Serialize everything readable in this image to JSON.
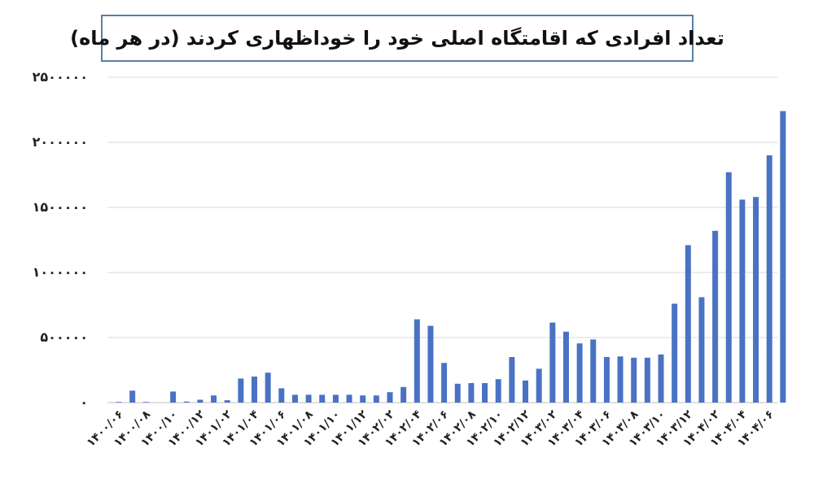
{
  "chart_data": {
    "type": "bar",
    "title": "تعداد افرادی که اقامتگاه اصلی خود را خوداظهاری کردند (در هر ماه)",
    "xlabel": "",
    "ylabel": "",
    "ylim": [
      0,
      2500000
    ],
    "yticks": [
      {
        "value": 0,
        "label": "۰"
      },
      {
        "value": 500000,
        "label": "۵۰۰۰۰۰"
      },
      {
        "value": 1000000,
        "label": "۱۰۰۰۰۰۰"
      },
      {
        "value": 1500000,
        "label": "۱۵۰۰۰۰۰"
      },
      {
        "value": 2000000,
        "label": "۲۰۰۰۰۰۰"
      },
      {
        "value": 2500000,
        "label": "۲۵۰۰۰۰۰"
      }
    ],
    "grid": true,
    "bar_color": "#4a72c4",
    "categories": [
      "1400/06",
      "1400/07",
      "1400/08",
      "1400/09",
      "1400/10",
      "1400/11",
      "1400/12",
      "1401/01",
      "1401/02",
      "1401/03",
      "1401/04",
      "1401/05",
      "1401/06",
      "1401/07",
      "1401/08",
      "1401/09",
      "1401/10",
      "1401/11",
      "1401/12",
      "1402/01",
      "1402/02",
      "1402/03",
      "1402/04",
      "1402/05",
      "1402/06",
      "1402/07",
      "1402/08",
      "1402/09",
      "1402/10",
      "1402/11",
      "1402/12",
      "1403/01",
      "1403/02",
      "1403/03",
      "1403/04",
      "1403/05",
      "1403/06",
      "1403/07",
      "1403/08",
      "1403/09",
      "1403/10",
      "1403/11",
      "1403/12",
      "1404/01",
      "1404/02",
      "1404/03",
      "1404/04",
      "1404/05",
      "1404/06",
      "1404/07"
    ],
    "tick_labels": [
      "۱۴۰۰/۰۶",
      "۱۴۰۰/۰۸",
      "۱۴۰۰/۱۰",
      "۱۴۰۰/۱۲",
      "۱۴۰۱/۰۲",
      "۱۴۰۱/۰۴",
      "۱۴۰۱/۰۶",
      "۱۴۰۱/۰۸",
      "۱۴۰۱/۱۰",
      "۱۴۰۱/۱۲",
      "۱۴۰۲/۰۲",
      "۱۴۰۲/۰۴",
      "۱۴۰۲/۰۶",
      "۱۴۰۲/۰۸",
      "۱۴۰۲/۱۰",
      "۱۴۰۲/۱۲",
      "۱۴۰۳/۰۲",
      "۱۴۰۳/۰۴",
      "۱۴۰۳/۰۶",
      "۱۴۰۳/۰۸",
      "۱۴۰۳/۱۰",
      "۱۴۰۳/۱۲",
      "۱۴۰۴/۰۲",
      "۱۴۰۴/۰۴",
      "۱۴۰۴/۰۶"
    ],
    "values": [
      5000,
      92000,
      5000,
      0,
      85000,
      8000,
      22000,
      55000,
      18000,
      185000,
      200000,
      230000,
      110000,
      60000,
      60000,
      60000,
      60000,
      60000,
      55000,
      55000,
      80000,
      120000,
      640000,
      590000,
      305000,
      145000,
      150000,
      150000,
      180000,
      350000,
      170000,
      260000,
      615000,
      545000,
      455000,
      485000,
      350000,
      355000,
      345000,
      345000,
      370000,
      760000,
      1210000,
      810000,
      1320000,
      1770000,
      1560000,
      1580000,
      1900000,
      2240000
    ]
  }
}
